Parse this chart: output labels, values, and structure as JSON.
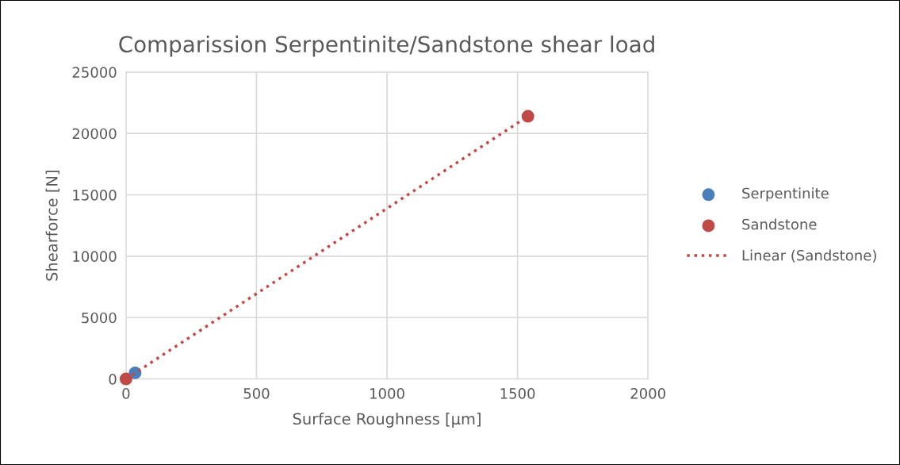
{
  "chart_data": {
    "type": "scatter",
    "title": "Comparission Serpentinite/Sandstone shear load",
    "xlabel": "Surface Roughness [µm]",
    "ylabel": "Shearforce [N]",
    "series": [
      {
        "name": "Serpentinite",
        "color": "#4a7ebb",
        "x": [
          35
        ],
        "values": [
          500
        ]
      },
      {
        "name": "Sandstone",
        "color": "#be4b48",
        "x": [
          0,
          1540
        ],
        "values": [
          0,
          21400
        ]
      },
      {
        "name": "Linear (Sandstone)",
        "type": "line",
        "line_style": "dotted",
        "marker": "none",
        "color": "#be4b48",
        "x": [
          0,
          1540
        ],
        "values": [
          0,
          21400
        ]
      }
    ],
    "xlim": [
      0,
      2000
    ],
    "xticks": [
      0,
      500,
      1000,
      1500,
      2000
    ],
    "ylim": [
      0,
      25000
    ],
    "yticks": [
      0,
      5000,
      10000,
      15000,
      20000,
      25000
    ],
    "grid": true,
    "legend": "right",
    "marker": "circle"
  }
}
